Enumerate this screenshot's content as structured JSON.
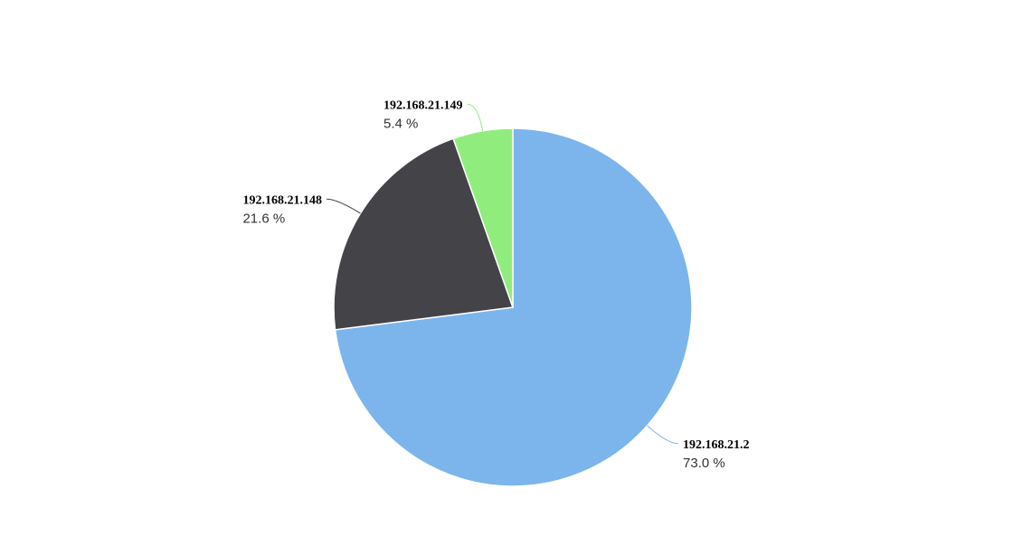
{
  "chart_data": {
    "type": "pie",
    "categories": [
      "192.168.21.2",
      "192.168.21.148",
      "192.168.21.149"
    ],
    "values": [
      73.0,
      21.6,
      5.4
    ],
    "value_labels": [
      "73.0 %",
      "21.6 %",
      "5.4 %"
    ],
    "colors": [
      "#7cb5ec",
      "#434348",
      "#90ed7d"
    ]
  }
}
